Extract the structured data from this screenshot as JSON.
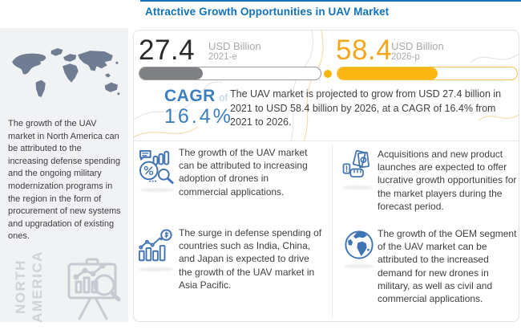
{
  "page": {
    "title": "Attractive Growth Opportunities in UAV Market",
    "accent_blue": "#1173b9",
    "accent_yellow": "#fdb714",
    "icon_blue": "#4273b3"
  },
  "sidebar": {
    "description": "The growth of the UAV market in North America can be attributed to the increasing defense spending and the ongoing military modernization programs in the region in the form of procurement of new systems and upgradation of existing ones.",
    "region_label_1": "NORTH",
    "region_label_2": "AMERICA",
    "map_icon": "world-map",
    "bottom_icon": "chart-presentation-easel-icon"
  },
  "stats": {
    "current": {
      "value": "27.4",
      "unit": "USD Billion",
      "year": "2021-e",
      "bar_fill_pct": 35,
      "bar_color": "#7f8083"
    },
    "projected": {
      "value": "58.4",
      "unit": "USD Billion",
      "year": "2026-p",
      "bar_fill_pct": 56,
      "bar_color": "#fdb714"
    },
    "cagr": {
      "label": "CAGR",
      "of": "of",
      "value": "16.4%"
    },
    "summary": "The UAV market is projected to grow from USD 27.4 billion in 2021 to USD 58.4 billion by 2026, at a CAGR of 16.4% from 2021 to 2026."
  },
  "opportunities": [
    {
      "icon": "market-research-icon",
      "text": "The growth of the UAV market can be attributed to increasing adoption of drones in commercial applications."
    },
    {
      "icon": "cash-in-hand-icon",
      "text": "Acquisitions and new product launches are expected to offer lucrative growth opportunities for the market players during the forecast period."
    },
    {
      "icon": "defense-spending-growth-icon",
      "text": "The surge in defense spending of countries such as India, China, and Japan is expected to drive the growth of the UAV market in Asia Pacific."
    },
    {
      "icon": "globe-icon",
      "text": "The growth of the OEM segment of the UAV market can be attributed to the increased demand for new drones in military, as well as civil and commercial applications."
    }
  ],
  "chart_data": {
    "type": "bar",
    "title": "Attractive Growth Opportunities in UAV Market",
    "categories": [
      "2021-e",
      "2026-p"
    ],
    "values": [
      27.4,
      58.4
    ],
    "unit": "USD Billion",
    "cagr_pct": 16.4,
    "bar_colors": [
      "#7f8083",
      "#fdb714"
    ],
    "region_highlight": "North America"
  }
}
